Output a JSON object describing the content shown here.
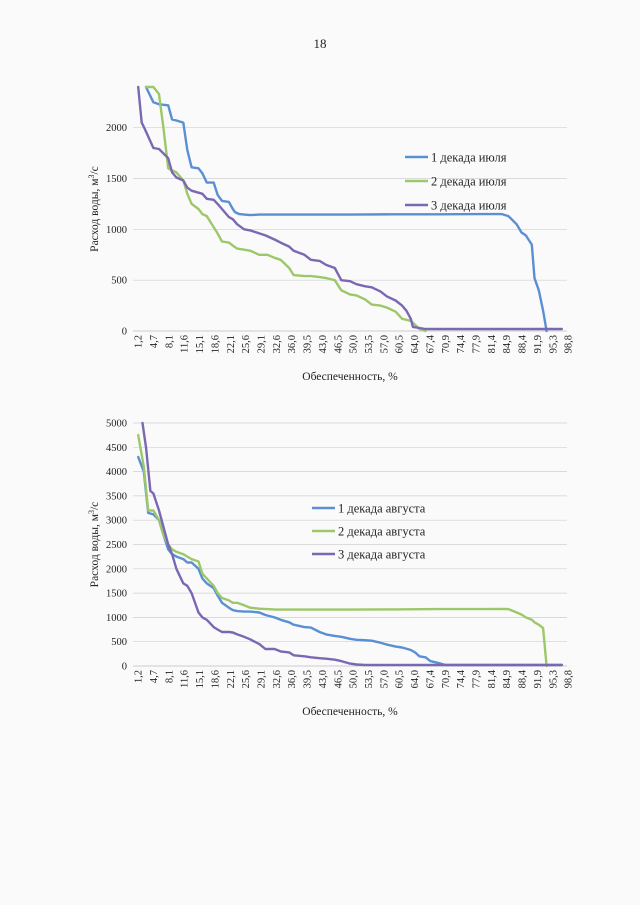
{
  "page": {
    "number": "18"
  },
  "colors": {
    "series1": "#5b8fd4",
    "series2": "#9cc86a",
    "series3": "#7a68b2"
  },
  "x_tick_labels": [
    "1,2",
    "4,7",
    "8,1",
    "11,6",
    "15,1",
    "18,6",
    "22,1",
    "25,6",
    "29,1",
    "32,6",
    "36,0",
    "39,5",
    "43,0",
    "46,5",
    "50,0",
    "53,5",
    "57,0",
    "60,5",
    "64,0",
    "67,4",
    "70,9",
    "74,4",
    "77,9",
    "81,4",
    "84,9",
    "88,4",
    "91,9",
    "95,3",
    "98,8"
  ],
  "chart_data": [
    {
      "type": "line",
      "xlabel": "Обеспеченность, %",
      "ylabel": "Расход воды, м³/с",
      "ylabel_main": "Расход воды, м",
      "ylabel_sup": "3",
      "ylabel_tail": "/с",
      "ylim": [
        0,
        2400
      ],
      "xlim": [
        0,
        100
      ],
      "yticks": [
        0,
        500,
        1000,
        1500,
        2000
      ],
      "legend_position": "right",
      "grid": true,
      "series": [
        {
          "name": "1 декада июля",
          "color": "#5b8fd4",
          "x": [
            3,
            4.7,
            6,
            8.1,
            9,
            10,
            11.6,
            12.5,
            13.5,
            15.1,
            16,
            17,
            18.6,
            19.5,
            20.5,
            22.1,
            23,
            23.5,
            24.5,
            25.6,
            27,
            29.1,
            33,
            40,
            50,
            60,
            70,
            80,
            85,
            86.5,
            88.4,
            89.5,
            90.5,
            91.9,
            92.5,
            93.5,
            94.5,
            95.3
          ],
          "y": [
            2400,
            2250,
            2230,
            2220,
            2080,
            2070,
            2050,
            1780,
            1610,
            1600,
            1550,
            1460,
            1460,
            1340,
            1280,
            1270,
            1200,
            1170,
            1150,
            1145,
            1140,
            1145,
            1145,
            1145,
            1145,
            1148,
            1148,
            1150,
            1150,
            1130,
            1050,
            970,
            940,
            850,
            520,
            400,
            200,
            0
          ]
        },
        {
          "name": "2 декада июля",
          "color": "#9cc86a",
          "x": [
            3,
            4.7,
            6,
            7,
            8.1,
            9,
            10,
            11.6,
            12.5,
            13.5,
            15.1,
            16,
            17,
            18.6,
            19.5,
            20.5,
            22.1,
            23,
            24,
            25.6,
            27,
            29.1,
            31,
            32.6,
            34,
            36,
            37,
            39.5,
            41,
            43,
            44.5,
            46.5,
            48,
            50,
            51.5,
            53.5,
            55,
            57,
            58.5,
            60.5,
            62,
            64,
            65,
            66,
            67.4
          ],
          "y": [
            2400,
            2400,
            2330,
            2000,
            1600,
            1580,
            1560,
            1480,
            1350,
            1250,
            1200,
            1150,
            1130,
            1020,
            960,
            880,
            870,
            840,
            810,
            800,
            790,
            750,
            750,
            720,
            700,
            620,
            550,
            540,
            540,
            530,
            520,
            500,
            400,
            360,
            350,
            310,
            260,
            250,
            230,
            190,
            120,
            100,
            60,
            20,
            0
          ]
        },
        {
          "name": "3 декада июля",
          "color": "#7a68b2",
          "x": [
            1.2,
            2,
            2.7,
            4.7,
            6,
            8.1,
            9,
            10,
            11.6,
            12.5,
            13.5,
            15.1,
            16,
            17,
            18.6,
            19.5,
            20.5,
            22.1,
            23,
            24,
            25.6,
            27,
            29.1,
            30.5,
            32.6,
            34,
            36,
            37,
            39.5,
            41,
            43,
            44.5,
            46.5,
            48,
            50,
            51.5,
            53.5,
            55,
            57,
            58.5,
            60.5,
            62,
            63,
            64,
            64.5,
            67.4,
            75,
            85,
            95.3,
            98.8
          ],
          "y": [
            2400,
            2050,
            1990,
            1800,
            1790,
            1700,
            1560,
            1510,
            1480,
            1410,
            1380,
            1360,
            1350,
            1300,
            1290,
            1250,
            1200,
            1120,
            1100,
            1050,
            1000,
            990,
            960,
            940,
            900,
            870,
            830,
            790,
            750,
            700,
            690,
            650,
            620,
            500,
            490,
            460,
            440,
            430,
            390,
            340,
            300,
            250,
            200,
            120,
            40,
            20,
            20,
            20,
            20,
            20
          ]
        }
      ]
    },
    {
      "type": "line",
      "xlabel": "Обеспеченность, %",
      "ylabel": "Расход воды, м³/с",
      "ylabel_main": "Расход воды, м",
      "ylabel_sup": "3",
      "ylabel_tail": "/с",
      "ylim": [
        0,
        5000
      ],
      "xlim": [
        0,
        100
      ],
      "yticks": [
        0,
        500,
        1000,
        1500,
        2000,
        2500,
        3000,
        3500,
        4000,
        4500,
        5000
      ],
      "legend_position": "right",
      "grid": true,
      "series": [
        {
          "name": "1 декада августа",
          "color": "#5b8fd4",
          "x": [
            1.2,
            2.5,
            3.5,
            4.7,
            6,
            7,
            8.1,
            9,
            10,
            11.6,
            12.5,
            13.5,
            15.1,
            16,
            17,
            18.6,
            19.5,
            20.5,
            22.1,
            23,
            24,
            25.6,
            27,
            29.1,
            30.5,
            32.6,
            34,
            36,
            37,
            39.5,
            41,
            43,
            44.5,
            46.5,
            48,
            50,
            51.5,
            53.5,
            55,
            57,
            58.5,
            60.5,
            62,
            64,
            65,
            66,
            67.4,
            68.5,
            70.9,
            72,
            74.4,
            80,
            90,
            98.8
          ],
          "y": [
            4300,
            4000,
            3150,
            3120,
            3000,
            2700,
            2400,
            2300,
            2250,
            2200,
            2130,
            2130,
            2000,
            1800,
            1700,
            1600,
            1450,
            1300,
            1200,
            1150,
            1130,
            1120,
            1120,
            1100,
            1050,
            1000,
            950,
            900,
            850,
            800,
            790,
            700,
            650,
            620,
            600,
            560,
            540,
            530,
            520,
            480,
            440,
            400,
            380,
            330,
            280,
            200,
            180,
            100,
            50,
            20,
            20,
            20,
            20,
            20
          ]
        },
        {
          "name": "2 декада августа",
          "color": "#9cc86a",
          "x": [
            1.2,
            2.5,
            3.5,
            4.7,
            6,
            7,
            8.1,
            9,
            10,
            11.6,
            12.5,
            13.5,
            15.1,
            16,
            17,
            18.6,
            19.5,
            20.5,
            22.1,
            23,
            24,
            25.6,
            27,
            29.1,
            33,
            40,
            50,
            60,
            70,
            80,
            84.9,
            86.5,
            88.4,
            89.5,
            90.5,
            91.9,
            92.5,
            93.5,
            94.5,
            95.3
          ],
          "y": [
            4750,
            4100,
            3200,
            3200,
            3000,
            2700,
            2500,
            2400,
            2350,
            2300,
            2250,
            2200,
            2150,
            1900,
            1800,
            1650,
            1500,
            1400,
            1350,
            1300,
            1300,
            1250,
            1200,
            1180,
            1160,
            1160,
            1160,
            1165,
            1170,
            1170,
            1175,
            1170,
            1100,
            1060,
            1000,
            950,
            900,
            850,
            780,
            0
          ]
        },
        {
          "name": "3 декада августа",
          "color": "#7a68b2",
          "x": [
            2.2,
            3,
            4,
            4.7,
            6,
            8.1,
            9,
            10,
            11.6,
            12.5,
            13.5,
            15.1,
            16,
            17,
            18.6,
            19.5,
            20.5,
            22.1,
            23,
            24,
            25.6,
            27,
            29.1,
            30.5,
            32.6,
            34,
            36,
            37,
            39.5,
            41,
            43,
            44.5,
            46.5,
            48,
            50,
            51.5,
            53.5,
            57,
            60,
            64,
            70,
            75,
            85,
            95.3,
            98.8
          ],
          "y": [
            5000,
            4500,
            3600,
            3550,
            3200,
            2500,
            2300,
            2000,
            1700,
            1650,
            1500,
            1100,
            1000,
            950,
            800,
            750,
            700,
            700,
            690,
            650,
            600,
            550,
            450,
            350,
            350,
            300,
            280,
            220,
            200,
            180,
            160,
            150,
            130,
            100,
            50,
            30,
            20,
            20,
            20,
            20,
            20,
            20,
            20,
            20,
            20
          ]
        }
      ]
    }
  ]
}
